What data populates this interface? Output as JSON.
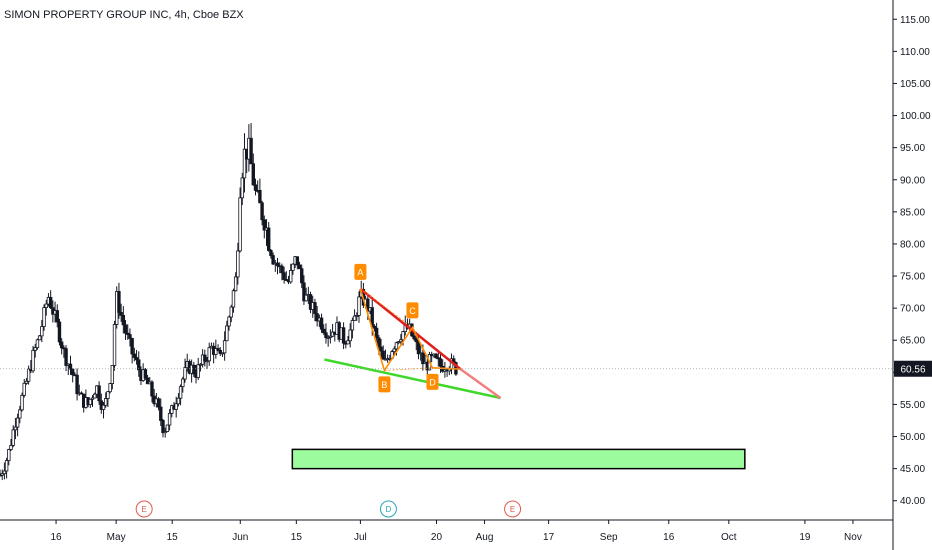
{
  "header": {
    "title": "SIMON PROPERTY GROUP INC, 4h, Cboe BZX"
  },
  "price_tag": {
    "label": "60.56",
    "color": "#131722"
  },
  "colors": {
    "candle_up": "#131722",
    "candle_down": "#131722",
    "trend_upper": "#e01f1f",
    "trend_lower": "#3fd82a",
    "pattern": "#ff8c00",
    "target_zone_fill": "#9cfb9c",
    "target_zone_border": "#000000",
    "axis_line": "#131722",
    "event_earnings": "#e05a4a",
    "event_dividend": "#2aa6b5"
  },
  "chart_data": {
    "type": "candlestick",
    "title": "SIMON PROPERTY GROUP INC, 4h, Cboe BZX",
    "timeframe": "4h",
    "exchange": "Cboe BZX",
    "y_axis": {
      "side": "right",
      "ylim": [
        37,
        118
      ],
      "ticks": [
        "115.00",
        "110.00",
        "105.00",
        "100.00",
        "95.00",
        "90.00",
        "85.00",
        "80.00",
        "75.00",
        "70.00",
        "65.00",
        "60.00",
        "55.00",
        "50.00",
        "45.00",
        "40.00"
      ],
      "current_price": 60.56
    },
    "x_axis": {
      "ticks": [
        {
          "label": "16",
          "day": 16
        },
        {
          "label": "May",
          "day": 31
        },
        {
          "label": "15",
          "day": 45
        },
        {
          "label": "Jun",
          "day": 62
        },
        {
          "label": "15",
          "day": 76
        },
        {
          "label": "Jul",
          "day": 92
        },
        {
          "label": "20",
          "day": 111
        },
        {
          "label": "Aug",
          "day": 123
        },
        {
          "label": "17",
          "day": 139
        },
        {
          "label": "Sep",
          "day": 154
        },
        {
          "label": "16",
          "day": 169
        },
        {
          "label": "Oct",
          "day": 184
        },
        {
          "label": "19",
          "day": 203
        },
        {
          "label": "Nov",
          "day": 215
        }
      ],
      "day_range": [
        2,
        225
      ]
    },
    "price_path": [
      [
        2,
        44
      ],
      [
        4,
        47
      ],
      [
        6,
        53
      ],
      [
        8,
        57
      ],
      [
        10,
        62
      ],
      [
        12,
        66
      ],
      [
        14,
        72
      ],
      [
        16,
        68
      ],
      [
        18,
        63
      ],
      [
        20,
        60
      ],
      [
        22,
        56
      ],
      [
        24,
        55
      ],
      [
        26,
        58
      ],
      [
        28,
        54
      ],
      [
        30,
        61
      ],
      [
        31,
        72
      ],
      [
        33,
        67
      ],
      [
        35,
        63
      ],
      [
        37,
        60
      ],
      [
        39,
        58
      ],
      [
        41,
        55
      ],
      [
        43,
        51
      ],
      [
        45,
        54
      ],
      [
        47,
        58
      ],
      [
        49,
        61
      ],
      [
        51,
        60
      ],
      [
        53,
        62
      ],
      [
        55,
        64
      ],
      [
        57,
        62
      ],
      [
        59,
        68
      ],
      [
        61,
        75
      ],
      [
        62,
        90
      ],
      [
        63,
        94
      ],
      [
        64,
        95
      ],
      [
        66,
        87
      ],
      [
        68,
        84
      ],
      [
        70,
        78
      ],
      [
        72,
        76
      ],
      [
        74,
        74
      ],
      [
        76,
        78
      ],
      [
        78,
        72
      ],
      [
        80,
        70
      ],
      [
        82,
        68
      ],
      [
        84,
        66
      ],
      [
        86,
        67
      ],
      [
        88,
        65
      ],
      [
        90,
        67
      ],
      [
        92,
        72
      ],
      [
        94,
        70
      ],
      [
        96,
        65
      ],
      [
        98,
        61
      ],
      [
        100,
        64
      ],
      [
        102,
        66
      ],
      [
        104,
        67
      ],
      [
        106,
        64
      ],
      [
        108,
        61
      ],
      [
        110,
        62
      ],
      [
        112,
        61
      ],
      [
        114,
        61.5
      ],
      [
        116,
        60.56
      ]
    ],
    "annotations": {
      "upper_trendline": {
        "color": "red",
        "points": [
          [
            92,
            73
          ],
          [
            117,
            60.5
          ]
        ],
        "extension_to": [
          127,
          56
        ]
      },
      "lower_trendline": {
        "color": "green",
        "points": [
          [
            83,
            62
          ],
          [
            127,
            56
          ]
        ]
      },
      "harmonic_pattern": {
        "color": "orange",
        "points": [
          {
            "label": "A",
            "day": 92,
            "value": 73
          },
          {
            "label": "B",
            "day": 98,
            "value": 60.3
          },
          {
            "label": "C",
            "day": 105,
            "value": 67
          },
          {
            "label": "D",
            "day": 110,
            "value": 60.7
          }
        ],
        "closing_segment_to": {
          "day": 117,
          "value": 60.5
        }
      },
      "target_zone": {
        "day_start": 75,
        "day_end": 188,
        "value_low": 45,
        "value_high": 48
      }
    },
    "events": [
      {
        "label": "E",
        "day": 38,
        "type": "earnings"
      },
      {
        "label": "D",
        "day": 99,
        "type": "dividend"
      },
      {
        "label": "E",
        "day": 130,
        "type": "earnings"
      }
    ],
    "grid": false,
    "legend": "none"
  }
}
